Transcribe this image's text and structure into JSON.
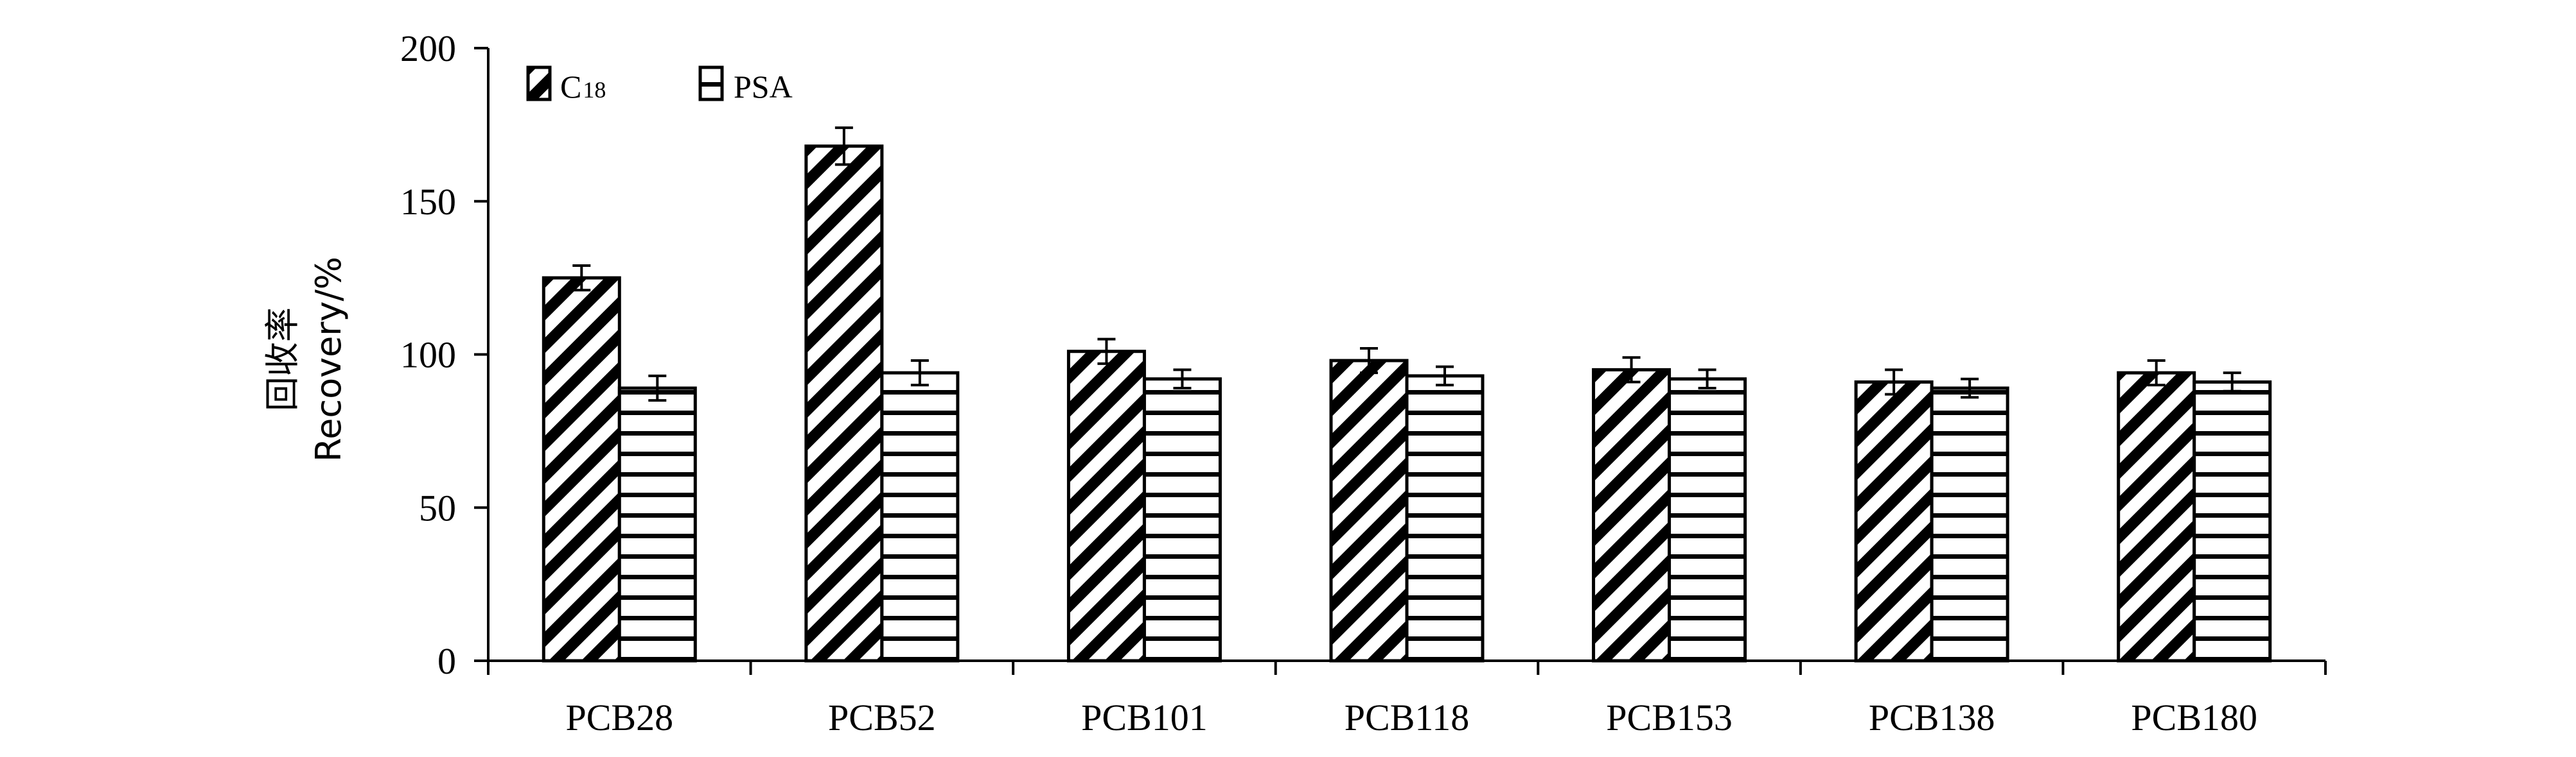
{
  "chart_data": {
    "type": "bar",
    "title": "",
    "xlabel": "",
    "ylabel_line1": "回收率",
    "ylabel_line2": "Recovery/%",
    "ylim": [
      0,
      200
    ],
    "yticks": [
      0,
      50,
      100,
      150,
      200
    ],
    "categories": [
      "PCB28",
      "PCB52",
      "PCB101",
      "PCB118",
      "PCB153",
      "PCB138",
      "PCB180"
    ],
    "series": [
      {
        "name": "C18",
        "name_main": "C",
        "name_sub": "18",
        "pattern": "diagonal",
        "values": [
          125,
          168,
          101,
          98,
          95,
          91,
          94
        ],
        "errors": [
          4,
          6,
          4,
          4,
          4,
          4,
          4
        ]
      },
      {
        "name": "PSA",
        "pattern": "horizontal",
        "values": [
          89,
          94,
          92,
          93,
          92,
          89,
          91
        ],
        "errors": [
          4,
          4,
          3,
          3,
          3,
          3,
          3
        ]
      }
    ],
    "legend_position": "top-left",
    "grid": false,
    "colors": {
      "stroke": "#000000",
      "fill": "#ffffff"
    }
  }
}
